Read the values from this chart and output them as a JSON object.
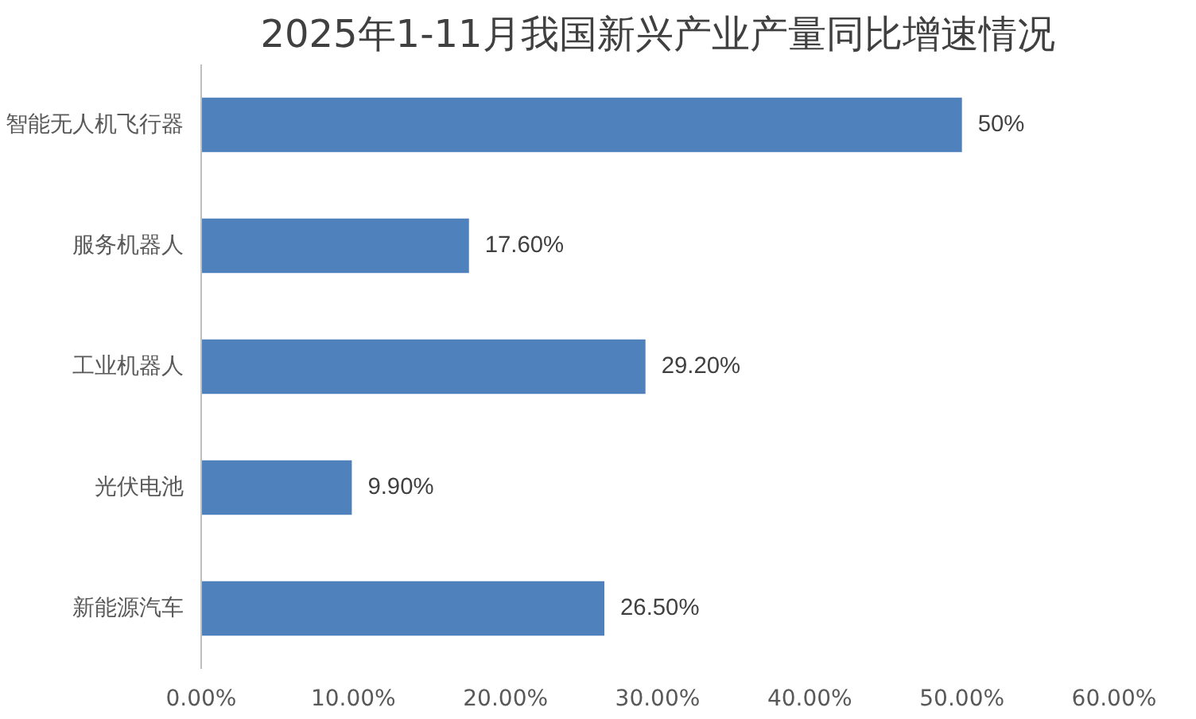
{
  "chart_data": {
    "type": "bar",
    "orientation": "horizontal",
    "title": "2025年1-11月我国新兴产业产量同比增速情况",
    "categories": [
      "智能无人机飞行器",
      "服务机器人",
      "工业机器人",
      "光伏电池",
      "新能源汽车"
    ],
    "values": [
      50,
      17.6,
      29.2,
      9.9,
      26.5
    ],
    "value_labels": [
      "50%",
      "17.60%",
      "29.20%",
      "9.90%",
      "26.50%"
    ],
    "color": "#4f81bd",
    "xlim": [
      0,
      60
    ],
    "xticks": [
      {
        "value": 0,
        "label": "0.00%"
      },
      {
        "value": 10,
        "label": "10.00%"
      },
      {
        "value": 20,
        "label": "20.00%"
      },
      {
        "value": 30,
        "label": "30.00%"
      },
      {
        "value": 40,
        "label": "40.00%"
      },
      {
        "value": 50,
        "label": "50.00%"
      },
      {
        "value": 60,
        "label": "60.00%"
      }
    ],
    "grid": false
  }
}
